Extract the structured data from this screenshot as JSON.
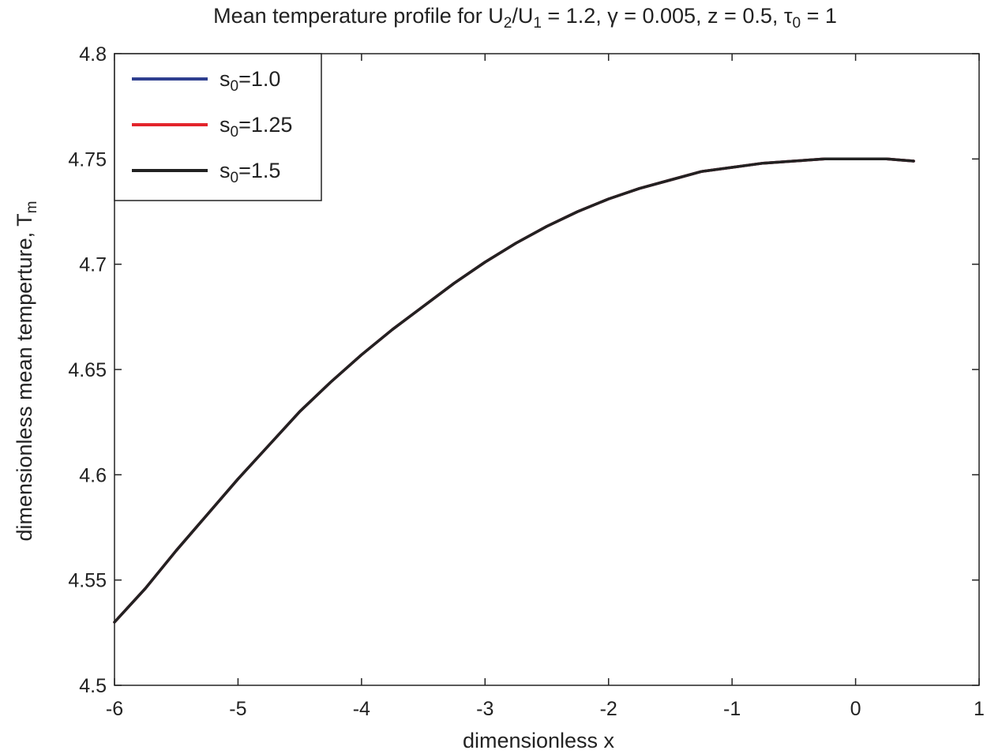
{
  "chart_data": {
    "type": "line",
    "title": {
      "segments": [
        {
          "text": "Mean temperature profile for U"
        },
        {
          "text": "2",
          "sub": true
        },
        {
          "text": "/U"
        },
        {
          "text": "1",
          "sub": true
        },
        {
          "text": " = 1.2,  γ = 0.005, z = 0.5, τ"
        },
        {
          "text": "0",
          "sub": true
        },
        {
          "text": " = 1"
        }
      ]
    },
    "xlabel": "dimensionless x",
    "ylabel": {
      "segments": [
        {
          "text": "dimensionless mean temperture,  T"
        },
        {
          "text": "m",
          "sub": true
        }
      ]
    },
    "xlim": [
      -6,
      1
    ],
    "ylim": [
      4.5,
      4.8
    ],
    "xticks": [
      -6,
      -5,
      -4,
      -3,
      -2,
      -1,
      0,
      1
    ],
    "xtick_labels": [
      "-6",
      "-5",
      "-4",
      "-3",
      "-2",
      "-1",
      "0",
      "1"
    ],
    "yticks": [
      4.5,
      4.55,
      4.6,
      4.65,
      4.7,
      4.75,
      4.8
    ],
    "ytick_labels": [
      "4.5",
      "4.55",
      "4.6",
      "4.65",
      "4.7",
      "4.75",
      "4.8"
    ],
    "grid": false,
    "legend_position": "top-left",
    "series": [
      {
        "legend": [
          {
            "text": "s"
          },
          {
            "text": "0",
            "sub": true
          },
          {
            "text": "=1.0"
          }
        ],
        "color": "#2e3f8f",
        "x": [
          -6.0,
          -5.75,
          -5.5,
          -5.25,
          -5.0,
          -4.75,
          -4.5,
          -4.25,
          -4.0,
          -3.75,
          -3.5,
          -3.25,
          -3.0,
          -2.75,
          -2.5,
          -2.25,
          -2.0,
          -1.75,
          -1.5,
          -1.25,
          -1.0,
          -0.75,
          -0.5,
          -0.25,
          0.0,
          0.25,
          0.47
        ],
        "y": [
          4.53,
          4.546,
          4.564,
          4.581,
          4.598,
          4.614,
          4.63,
          4.644,
          4.657,
          4.669,
          4.68,
          4.691,
          4.701,
          4.71,
          4.718,
          4.725,
          4.731,
          4.736,
          4.74,
          4.744,
          4.746,
          4.748,
          4.749,
          4.75,
          4.75,
          4.75,
          4.749
        ]
      },
      {
        "legend": [
          {
            "text": "s"
          },
          {
            "text": "0",
            "sub": true
          },
          {
            "text": "=1.25"
          }
        ],
        "color": "#e3242b",
        "x": [
          -6.0,
          -5.75,
          -5.5,
          -5.25,
          -5.0,
          -4.75,
          -4.5,
          -4.25,
          -4.0,
          -3.75,
          -3.5,
          -3.25,
          -3.0,
          -2.75,
          -2.5,
          -2.25,
          -2.0,
          -1.75,
          -1.5,
          -1.25,
          -1.0,
          -0.75,
          -0.5,
          -0.25,
          0.0,
          0.25,
          0.47
        ],
        "y": [
          4.53,
          4.546,
          4.564,
          4.581,
          4.598,
          4.614,
          4.63,
          4.644,
          4.657,
          4.669,
          4.68,
          4.691,
          4.701,
          4.71,
          4.718,
          4.725,
          4.731,
          4.736,
          4.74,
          4.744,
          4.746,
          4.748,
          4.749,
          4.75,
          4.75,
          4.75,
          4.749
        ]
      },
      {
        "legend": [
          {
            "text": "s"
          },
          {
            "text": "0",
            "sub": true
          },
          {
            "text": "=1.5"
          }
        ],
        "color": "#222222",
        "x": [
          -6.0,
          -5.75,
          -5.5,
          -5.25,
          -5.0,
          -4.75,
          -4.5,
          -4.25,
          -4.0,
          -3.75,
          -3.5,
          -3.25,
          -3.0,
          -2.75,
          -2.5,
          -2.25,
          -2.0,
          -1.75,
          -1.5,
          -1.25,
          -1.0,
          -0.75,
          -0.5,
          -0.25,
          0.0,
          0.25,
          0.47
        ],
        "y": [
          4.53,
          4.546,
          4.564,
          4.581,
          4.598,
          4.614,
          4.63,
          4.644,
          4.657,
          4.669,
          4.68,
          4.691,
          4.701,
          4.71,
          4.718,
          4.725,
          4.731,
          4.736,
          4.74,
          4.744,
          4.746,
          4.748,
          4.749,
          4.75,
          4.75,
          4.75,
          4.749
        ]
      }
    ]
  }
}
